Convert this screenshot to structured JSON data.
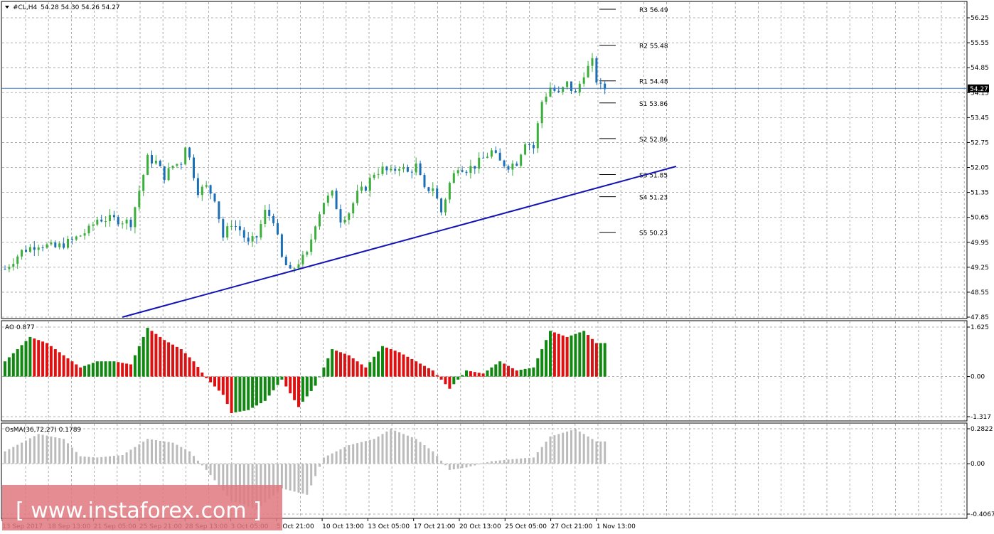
{
  "header": {
    "symbol": "#CL,H4",
    "ohlc": "54.28 54.30 54.26 54.27"
  },
  "current_price_label": "54.27",
  "watermark": "[ www.instaforex.com ]",
  "colors": {
    "bull_candle": "#3cae3c",
    "bear_candle": "#1a6fb5",
    "trendline": "#1414b4",
    "ao_up": "#118811",
    "ao_down": "#dd1111",
    "osma": "#bbbbbb",
    "watermark_bg": "#e07880",
    "price_line": "#3e7cc4"
  },
  "chart_data": [
    {
      "type": "candlestick",
      "title": "#CL,H4",
      "y_ticks": [
        "56.25",
        "55.55",
        "54.85",
        "54.15",
        "53.45",
        "52.75",
        "52.05",
        "51.35",
        "50.65",
        "49.95",
        "49.25",
        "48.55",
        "47.85"
      ],
      "ylim": [
        47.85,
        56.55
      ],
      "x_ticks": [
        "13 Sep 2017",
        "18 Sep 13:00",
        "21 Sep 05:00",
        "25 Sep 21:00",
        "28 Sep 13:00",
        "3 Oct 05:00",
        "5 Oct 21:00",
        "10 Oct 13:00",
        "13 Oct 05:00",
        "17 Oct 21:00",
        "20 Oct 13:00",
        "25 Oct 05:00",
        "27 Oct 21:00",
        "1 Nov 13:00"
      ],
      "close_path": [
        [
          0,
          49.2
        ],
        [
          4,
          49.7
        ],
        [
          8,
          49.9
        ],
        [
          12,
          49.8
        ],
        [
          16,
          50.0
        ],
        [
          20,
          50.3
        ],
        [
          22,
          50.6
        ],
        [
          26,
          50.6
        ],
        [
          30,
          50.5
        ],
        [
          32,
          51.4
        ],
        [
          34,
          52.3
        ],
        [
          36,
          52.2
        ],
        [
          38,
          51.8
        ],
        [
          40,
          52.1
        ],
        [
          42,
          52.2
        ],
        [
          43,
          52.7
        ],
        [
          44,
          52.3
        ],
        [
          46,
          51.4
        ],
        [
          48,
          51.5
        ],
        [
          50,
          51.2
        ],
        [
          52,
          50.1
        ],
        [
          54,
          50.5
        ],
        [
          56,
          50.3
        ],
        [
          58,
          49.9
        ],
        [
          60,
          50.1
        ],
        [
          62,
          50.8
        ],
        [
          64,
          50.6
        ],
        [
          66,
          49.5
        ],
        [
          68,
          49.1
        ],
        [
          70,
          49.4
        ],
        [
          72,
          49.6
        ],
        [
          74,
          50.5
        ],
        [
          76,
          51.1
        ],
        [
          78,
          51.3
        ],
        [
          80,
          50.6
        ],
        [
          82,
          50.8
        ],
        [
          84,
          51.3
        ],
        [
          86,
          51.5
        ],
        [
          88,
          51.9
        ],
        [
          90,
          52.0
        ],
        [
          92,
          51.9
        ],
        [
          94,
          52.1
        ],
        [
          96,
          51.9
        ],
        [
          98,
          52.1
        ],
        [
          100,
          51.4
        ],
        [
          102,
          51.5
        ],
        [
          104,
          50.8
        ],
        [
          106,
          51.6
        ],
        [
          108,
          52.1
        ],
        [
          110,
          52.0
        ],
        [
          112,
          52.1
        ],
        [
          114,
          52.3
        ],
        [
          116,
          52.5
        ],
        [
          118,
          52.2
        ],
        [
          120,
          52.1
        ],
        [
          122,
          52.2
        ],
        [
          124,
          52.8
        ],
        [
          126,
          52.6
        ],
        [
          128,
          53.9
        ],
        [
          130,
          54.3
        ],
        [
          132,
          54.1
        ],
        [
          134,
          54.4
        ],
        [
          136,
          54.1
        ],
        [
          138,
          54.7
        ],
        [
          140,
          55.0
        ],
        [
          141,
          54.5
        ],
        [
          142,
          54.3
        ],
        [
          143,
          54.27
        ]
      ],
      "pivots": [
        {
          "label": "R3 56.49",
          "value": 56.49
        },
        {
          "label": "R2 55.48",
          "value": 55.48
        },
        {
          "label": "R1 54.48",
          "value": 54.48
        },
        {
          "label": "S1 53.86",
          "value": 53.86
        },
        {
          "label": "S2 52.86",
          "value": 52.86
        },
        {
          "label": "S3 51.85",
          "value": 51.85
        },
        {
          "label": "S4 51.23",
          "value": 51.23
        },
        {
          "label": "S5 50.23",
          "value": 50.23
        }
      ],
      "trendline": {
        "from": [
          28,
          47.85
        ],
        "to": [
          160,
          52.08
        ]
      },
      "current_price": 54.27
    },
    {
      "type": "bar",
      "title": "AO 0.877",
      "y_ticks": [
        "1.625",
        "0.00",
        "-1.317"
      ],
      "ylim": [
        -1.317,
        1.625
      ],
      "keyframes": [
        [
          0,
          0.5
        ],
        [
          6,
          1.3
        ],
        [
          10,
          1.1
        ],
        [
          14,
          0.7
        ],
        [
          18,
          0.3
        ],
        [
          22,
          0.5
        ],
        [
          26,
          0.5
        ],
        [
          30,
          0.4
        ],
        [
          34,
          1.6
        ],
        [
          38,
          1.2
        ],
        [
          42,
          0.9
        ],
        [
          45,
          0.5
        ],
        [
          48,
          -0.05
        ],
        [
          52,
          -0.6
        ],
        [
          54,
          -1.2
        ],
        [
          58,
          -1.1
        ],
        [
          62,
          -0.8
        ],
        [
          66,
          -0.1
        ],
        [
          70,
          -1.0
        ],
        [
          74,
          -0.3
        ],
        [
          78,
          0.9
        ],
        [
          82,
          0.7
        ],
        [
          86,
          0.3
        ],
        [
          90,
          1.0
        ],
        [
          94,
          0.8
        ],
        [
          98,
          0.5
        ],
        [
          102,
          0.2
        ],
        [
          106,
          -0.4
        ],
        [
          110,
          0.2
        ],
        [
          114,
          0.1
        ],
        [
          118,
          0.5
        ],
        [
          122,
          0.2
        ],
        [
          126,
          0.3
        ],
        [
          130,
          1.5
        ],
        [
          134,
          1.3
        ],
        [
          138,
          1.5
        ],
        [
          141,
          1.1
        ]
      ]
    },
    {
      "type": "bar",
      "title": "OsMA(36,72,27) 0.1789",
      "y_ticks": [
        "0.2822",
        "0.00",
        "-0.4067"
      ],
      "ylim": [
        -0.4067,
        0.2822
      ],
      "keyframes": [
        [
          0,
          0.1
        ],
        [
          8,
          0.24
        ],
        [
          14,
          0.2
        ],
        [
          18,
          0.06
        ],
        [
          22,
          0.05
        ],
        [
          28,
          0.07
        ],
        [
          34,
          0.2
        ],
        [
          40,
          0.17
        ],
        [
          44,
          0.1
        ],
        [
          48,
          -0.05
        ],
        [
          54,
          -0.3
        ],
        [
          60,
          -0.37
        ],
        [
          66,
          -0.2
        ],
        [
          72,
          -0.25
        ],
        [
          76,
          0.05
        ],
        [
          82,
          0.15
        ],
        [
          88,
          0.2
        ],
        [
          92,
          0.28
        ],
        [
          98,
          0.2
        ],
        [
          102,
          0.1
        ],
        [
          106,
          -0.05
        ],
        [
          110,
          -0.03
        ],
        [
          116,
          0.02
        ],
        [
          122,
          0.04
        ],
        [
          126,
          0.05
        ],
        [
          130,
          0.22
        ],
        [
          136,
          0.28
        ],
        [
          141,
          0.18
        ]
      ]
    }
  ]
}
